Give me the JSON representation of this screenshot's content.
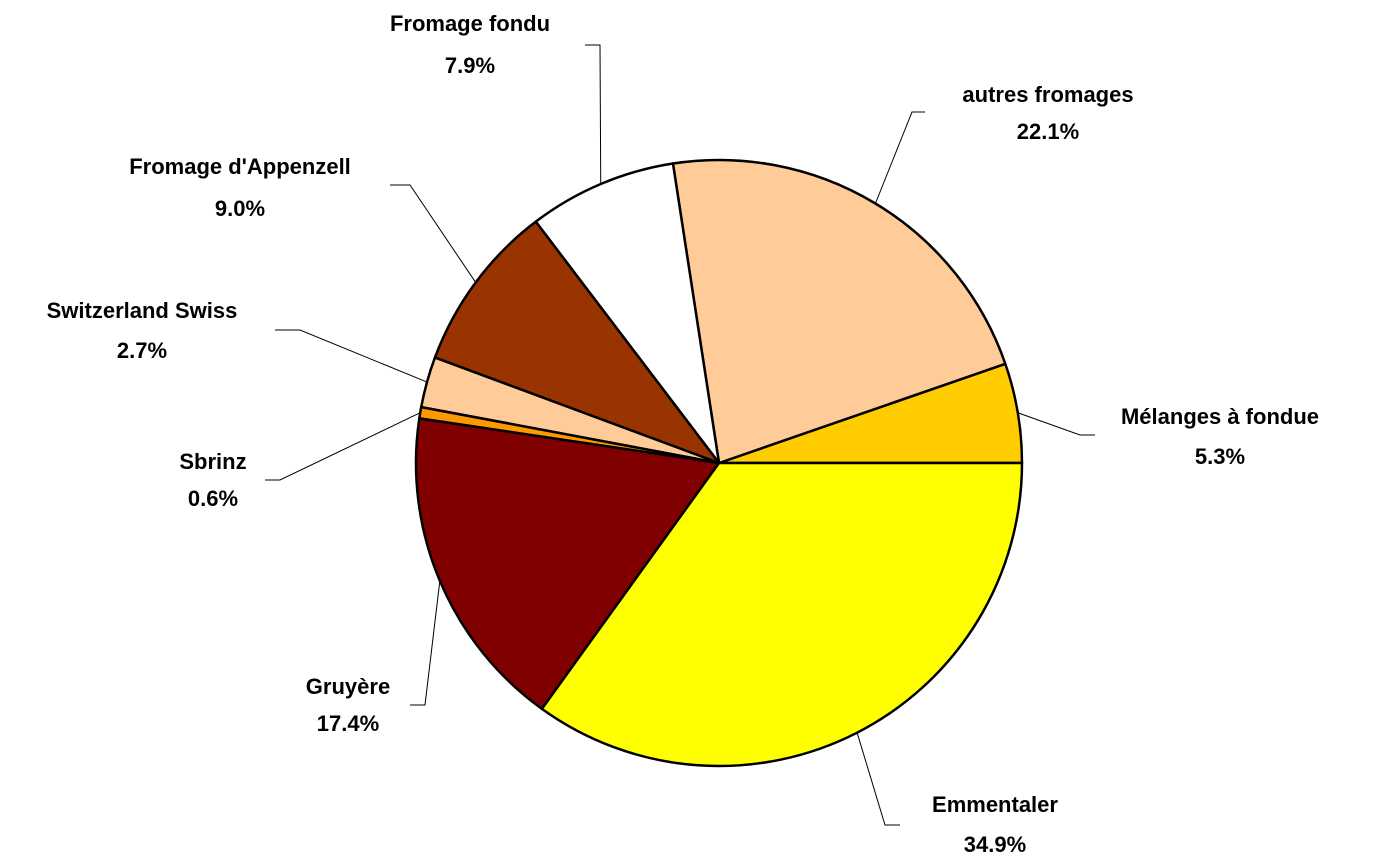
{
  "chart_data": {
    "type": "pie",
    "categories": [
      "Mélanges à fondue",
      "autres fromages",
      "Fromage fondu",
      "Fromage d'Appenzell",
      "Switzerland Swiss",
      "Sbrinz",
      "Gruyère",
      "Emmentaler"
    ],
    "values": [
      5.3,
      22.1,
      7.9,
      9.0,
      2.7,
      0.6,
      17.4,
      34.9
    ],
    "value_labels": [
      "5.3%",
      "22.1%",
      "7.9%",
      "9.0%",
      "2.7%",
      "0.6%",
      "17.4%",
      "34.9%"
    ],
    "colors": [
      "#FFCC00",
      "#FFCC99",
      "#FFFFFF",
      "#993300",
      "#FFCC99",
      "#FF9900",
      "#800000",
      "#FFFF00"
    ]
  }
}
